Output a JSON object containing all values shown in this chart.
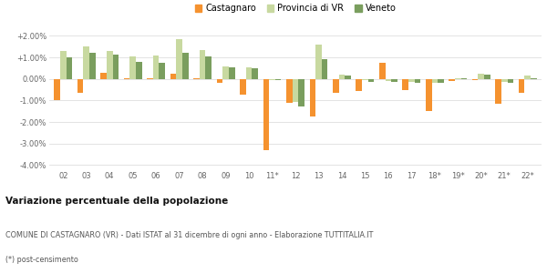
{
  "years": [
    "02",
    "03",
    "04",
    "05",
    "06",
    "07",
    "08",
    "09",
    "10",
    "11*",
    "12",
    "13",
    "14",
    "15",
    "16",
    "17",
    "18*",
    "19*",
    "20*",
    "21*",
    "22*"
  ],
  "castagnaro": [
    -1.0,
    -0.65,
    0.3,
    0.05,
    0.02,
    0.25,
    0.05,
    -0.2,
    -0.75,
    -3.3,
    -1.1,
    -1.75,
    -0.65,
    -0.55,
    0.75,
    -0.5,
    -1.5,
    -0.1,
    -0.05,
    -1.15,
    -0.65
  ],
  "provincia_vr": [
    1.3,
    1.5,
    1.3,
    1.05,
    1.1,
    1.85,
    1.35,
    0.6,
    0.55,
    -0.05,
    -1.05,
    1.6,
    0.2,
    -0.05,
    -0.1,
    -0.15,
    -0.2,
    0.05,
    0.25,
    -0.15,
    0.15
  ],
  "veneto": [
    1.0,
    1.2,
    1.15,
    0.8,
    0.75,
    1.2,
    1.05,
    0.55,
    0.5,
    -0.05,
    -1.3,
    0.9,
    0.15,
    -0.12,
    -0.12,
    -0.18,
    -0.2,
    0.05,
    0.2,
    -0.2,
    0.05
  ],
  "castagnaro_color": "#f5922f",
  "provincia_color": "#c8d9a0",
  "veneto_color": "#7a9e5e",
  "title": "Variazione percentuale della popolazione",
  "subtitle": "COMUNE DI CASTAGNARO (VR) - Dati ISTAT al 31 dicembre di ogni anno - Elaborazione TUTTITALIA.IT",
  "footnote": "(*) post-censimento",
  "ylim": [
    -4.2,
    2.4
  ],
  "yticks": [
    -4.0,
    -3.0,
    -2.0,
    -1.0,
    0.0,
    1.0,
    2.0
  ],
  "ytick_labels": [
    "-4.00%",
    "-3.00%",
    "-2.00%",
    "-1.00%",
    "0.00%",
    "+1.00%",
    "+2.00%"
  ],
  "background_color": "#ffffff",
  "grid_color": "#d8d8d8",
  "legend_labels": [
    "Castagnaro",
    "Provincia di VR",
    "Veneto"
  ]
}
